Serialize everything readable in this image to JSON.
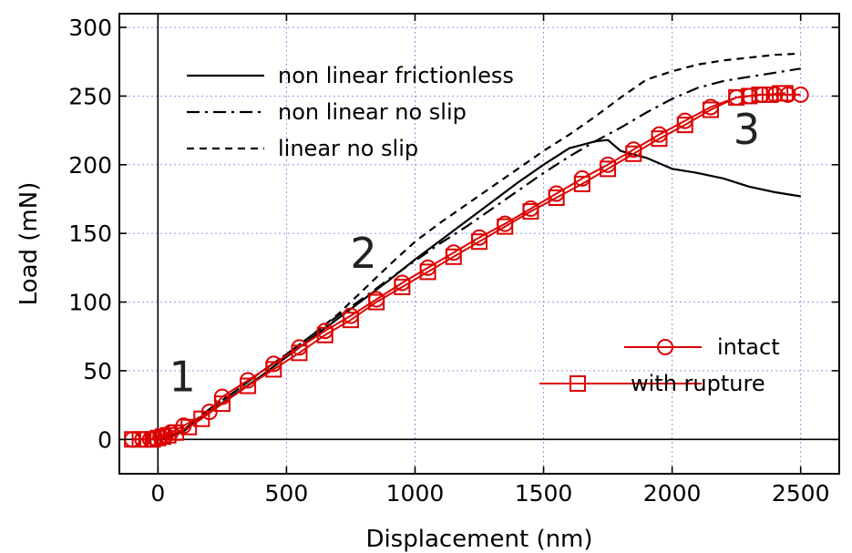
{
  "chart_data": {
    "type": "line",
    "title": "",
    "xlabel": "Displacement (nm)",
    "ylabel": "Load (mN)",
    "xlim": [
      -150,
      2650
    ],
    "ylim": [
      -25,
      310
    ],
    "xticks": [
      0,
      500,
      1000,
      1500,
      2000,
      2500
    ],
    "yticks": [
      0,
      50,
      100,
      150,
      200,
      250,
      300
    ],
    "grid": true,
    "legend_placement_models": "top-left",
    "legend_placement_data": "center-right",
    "series": [
      {
        "name": "non linear frictionless",
        "style": "solid",
        "color": "#000000",
        "x": [
          0,
          50,
          100,
          200,
          300,
          400,
          500,
          600,
          700,
          800,
          900,
          1000,
          1100,
          1200,
          1300,
          1400,
          1500,
          1600,
          1700,
          1750,
          1800,
          1900,
          2000,
          2100,
          2200,
          2300,
          2400,
          2500
        ],
        "y": [
          0,
          2,
          6,
          20,
          33,
          46,
          60,
          74,
          88,
          102,
          116,
          131,
          145,
          159,
          173,
          187,
          200,
          212,
          217,
          218,
          210,
          205,
          197,
          194,
          190,
          184,
          180,
          177
        ]
      },
      {
        "name": "non linear no slip",
        "style": "dashdot",
        "color": "#000000",
        "x": [
          0,
          100,
          200,
          300,
          400,
          500,
          600,
          700,
          800,
          900,
          1000,
          1100,
          1200,
          1300,
          1400,
          1500,
          1600,
          1700,
          1800,
          1900,
          2000,
          2100,
          2200,
          2300,
          2400,
          2500
        ],
        "y": [
          0,
          7,
          22,
          35,
          49,
          62,
          76,
          90,
          103,
          117,
          130,
          143,
          155,
          168,
          181,
          194,
          206,
          217,
          227,
          238,
          248,
          256,
          261,
          264,
          267,
          270
        ]
      },
      {
        "name": "linear no slip",
        "style": "dashed",
        "color": "#000000",
        "x": [
          0,
          100,
          200,
          300,
          400,
          500,
          600,
          700,
          800,
          900,
          1000,
          1100,
          1200,
          1300,
          1400,
          1500,
          1600,
          1700,
          1800,
          1900,
          2000,
          2100,
          2200,
          2300,
          2400,
          2500
        ],
        "y": [
          0,
          7,
          22,
          35,
          49,
          62,
          76,
          91,
          109,
          127,
          144,
          158,
          171,
          184,
          197,
          210,
          222,
          235,
          249,
          262,
          268,
          273,
          276,
          278,
          280,
          281
        ]
      },
      {
        "name": "intact",
        "style": "marker-circle",
        "color": "#dd0000",
        "x": [
          -100,
          -60,
          -30,
          -10,
          10,
          30,
          50,
          100,
          200,
          250,
          350,
          450,
          550,
          650,
          750,
          850,
          950,
          1050,
          1150,
          1250,
          1350,
          1450,
          1550,
          1650,
          1750,
          1850,
          1950,
          2050,
          2150,
          2250,
          2300,
          2350,
          2400,
          2450,
          2500
        ],
        "y": [
          0,
          0,
          0,
          1,
          2,
          3,
          5,
          10,
          20,
          31,
          43,
          55,
          67,
          79,
          90,
          102,
          114,
          125,
          136,
          147,
          157,
          168,
          179,
          190,
          200,
          211,
          222,
          232,
          242,
          249,
          250,
          251,
          251,
          251,
          251
        ]
      },
      {
        "name": "with rupture",
        "style": "marker-square",
        "color": "#dd0000",
        "x": [
          -100,
          -70,
          -40,
          -20,
          0,
          20,
          40,
          70,
          120,
          170,
          250,
          350,
          450,
          550,
          650,
          750,
          850,
          950,
          1050,
          1150,
          1250,
          1350,
          1450,
          1550,
          1650,
          1750,
          1850,
          1950,
          2050,
          2150,
          2250,
          2300,
          2340,
          2380,
          2420,
          2440
        ],
        "y": [
          0,
          0,
          0,
          0,
          1,
          2,
          3,
          5,
          9,
          15,
          26,
          39,
          51,
          63,
          76,
          87,
          100,
          111,
          122,
          133,
          144,
          155,
          166,
          176,
          186,
          197,
          208,
          219,
          229,
          240,
          249,
          250,
          251,
          251,
          252,
          252
        ]
      }
    ],
    "annotations": [
      {
        "text": "1",
        "x": 95,
        "y": 35
      },
      {
        "text": "2",
        "x": 800,
        "y": 125
      },
      {
        "text": "3",
        "x": 2290,
        "y": 215
      }
    ]
  }
}
